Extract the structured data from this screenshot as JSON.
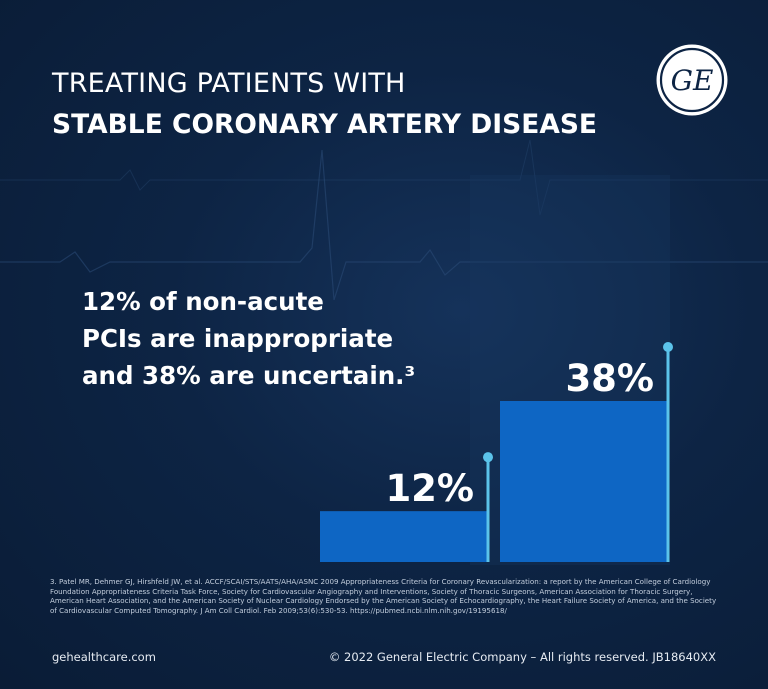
{
  "title": {
    "line1": "TREATING PATIENTS WITH",
    "line2": "STABLE CORONARY ARTERY DISEASE"
  },
  "logo": {
    "icon": "ge-monogram-icon",
    "text": "GE"
  },
  "headline": {
    "line1": "12% of non-acute",
    "line2": "PCIs are inappropriate",
    "line3": "and 38% are uncertain.³"
  },
  "chart_data": {
    "type": "bar",
    "categories": [
      "",
      ""
    ],
    "values": [
      12,
      38
    ],
    "value_labels": [
      "12%",
      "38%"
    ],
    "title": "",
    "xlabel": "",
    "ylabel": "",
    "ylim": [
      0,
      38
    ],
    "grid": false,
    "legend": "none",
    "bar_color": "#0e66c4",
    "marker_color": "#5bc3ea"
  },
  "footnote": "3. Patel MR, Dehmer GJ, Hirshfeld JW, et al. ACCF/SCAI/STS/AATS/AHA/ASNC 2009 Appropriateness Criteria for Coronary Revascularization: a report by the American College of Cardiology Foundation Appropriateness Criteria Task Force, Society for Cardiovascular Angiography and Interventions, Society of Thoracic Surgeons, American Association for Thoracic Surgery, American Heart Association, and the American Society of Nuclear Cardiology Endorsed by the American Society of Echocardiography, the Heart Failure Society of America, and the Society of Cardiovascular Computed Tomography. J Am Coll Cardiol. Feb 2009;53(6):530-53. https://pubmed.ncbi.nlm.nih.gov/19195618/",
  "footer": {
    "website": "gehealthcare.com",
    "copyright": "© 2022 General Electric Company – All rights reserved. JB18640XX"
  },
  "colors": {
    "background": "#0d2444",
    "text": "#ffffff",
    "bar": "#0e66c4",
    "marker": "#5bc3ea"
  }
}
